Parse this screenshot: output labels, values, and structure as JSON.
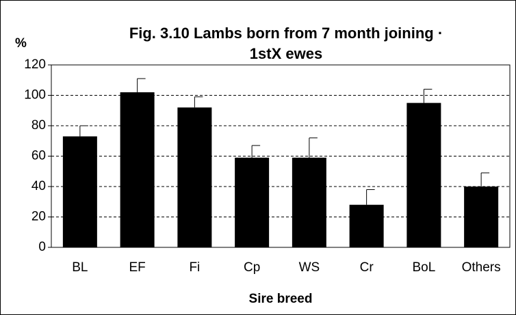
{
  "chart_data": {
    "type": "bar",
    "title_lines": [
      "Fig. 3.10 Lambs born from 7 month joining ·",
      "1stX ewes"
    ],
    "y_axis_label": "%",
    "x_axis_label": "Sire breed",
    "categories": [
      "BL",
      "EF",
      "Fi",
      "Cp",
      "WS",
      "Cr",
      "BoL",
      "Others"
    ],
    "values": [
      73,
      102,
      92,
      59,
      59,
      28,
      95,
      40
    ],
    "errors": [
      7,
      9,
      7,
      8,
      13,
      10,
      9,
      9
    ],
    "color": "#000000",
    "ylim": [
      0,
      120
    ],
    "yticks": [
      0,
      20,
      40,
      60,
      80,
      100,
      120
    ],
    "grid": true
  }
}
